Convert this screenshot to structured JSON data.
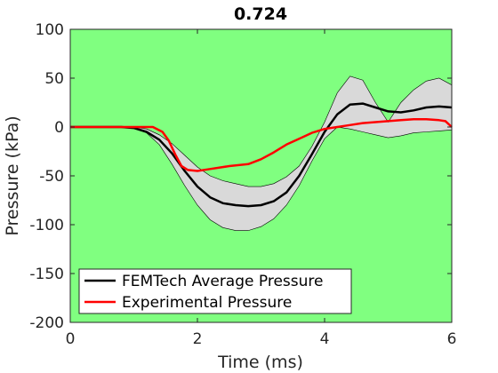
{
  "chart_data": {
    "type": "line",
    "title": "0.724",
    "xlabel": "Time (ms)",
    "ylabel": "Pressure (kPa)",
    "xlim": [
      0,
      6
    ],
    "ylim": [
      -200,
      100
    ],
    "x_ticks": [
      0,
      2,
      4,
      6
    ],
    "y_ticks": [
      -200,
      -150,
      -100,
      -50,
      0,
      50,
      100
    ],
    "x_tick_labels": [
      "0",
      "2",
      "4",
      "6"
    ],
    "y_tick_labels": [
      "-200",
      "-150",
      "-100",
      "-50",
      "0",
      "50",
      "100"
    ],
    "grid": false,
    "legend_position": "bottom-left",
    "background_color": "#80ff80",
    "band_color": "#d9d9d9",
    "series": [
      {
        "name": "FEMTech Average Pressure",
        "color": "#000000",
        "x": [
          0,
          0.5,
          0.8,
          1.0,
          1.2,
          1.4,
          1.6,
          1.8,
          2.0,
          2.2,
          2.4,
          2.6,
          2.8,
          3.0,
          3.2,
          3.4,
          3.6,
          3.8,
          4.0,
          4.2,
          4.4,
          4.6,
          4.8,
          5.0,
          5.2,
          5.4,
          5.6,
          5.8,
          6.0
        ],
        "values": [
          0,
          0,
          0,
          -1,
          -5,
          -13,
          -27,
          -45,
          -61,
          -72,
          -78,
          -80,
          -81,
          -80,
          -76,
          -67,
          -50,
          -28,
          -5,
          13,
          23,
          24,
          20,
          16,
          15,
          17,
          20,
          21,
          20
        ]
      },
      {
        "name": "Experimental Pressure",
        "color": "#ff0000",
        "x": [
          0,
          0.5,
          1.0,
          1.3,
          1.45,
          1.55,
          1.65,
          1.75,
          1.85,
          2.0,
          2.2,
          2.5,
          2.8,
          3.0,
          3.2,
          3.4,
          3.6,
          3.8,
          4.0,
          4.2,
          4.4,
          4.6,
          4.8,
          5.0,
          5.2,
          5.4,
          5.6,
          5.8,
          5.9,
          6.0
        ],
        "values": [
          0,
          0,
          0,
          0,
          -5,
          -14,
          -28,
          -40,
          -44,
          -45,
          -43,
          -40,
          -38,
          -33,
          -26,
          -18,
          -12,
          -6,
          -2,
          0,
          2,
          4,
          5,
          6,
          7,
          8,
          8,
          7,
          6,
          0
        ]
      }
    ],
    "band": {
      "x": [
        0,
        0.5,
        0.8,
        1.0,
        1.2,
        1.4,
        1.6,
        1.8,
        2.0,
        2.2,
        2.4,
        2.6,
        2.8,
        3.0,
        3.2,
        3.4,
        3.6,
        3.8,
        4.0,
        4.2,
        4.4,
        4.6,
        4.8,
        5.0,
        5.2,
        5.4,
        5.6,
        5.8,
        6.0
      ],
      "upper": [
        0,
        0,
        0,
        0,
        -2,
        -8,
        -17,
        -29,
        -41,
        -50,
        -55,
        -58,
        -61,
        -61,
        -58,
        -51,
        -40,
        -20,
        5,
        35,
        52,
        48,
        25,
        5,
        25,
        38,
        47,
        50,
        43
      ],
      "lower": [
        0,
        0,
        0,
        -1,
        -6,
        -18,
        -38,
        -60,
        -80,
        -95,
        -103,
        -106,
        -106,
        -102,
        -94,
        -80,
        -60,
        -35,
        -12,
        0,
        -2,
        -5,
        -8,
        -11,
        -9,
        -6,
        -5,
        -4,
        -3
      ]
    },
    "legend": [
      "FEMTech Average Pressure",
      "Experimental Pressure"
    ]
  }
}
